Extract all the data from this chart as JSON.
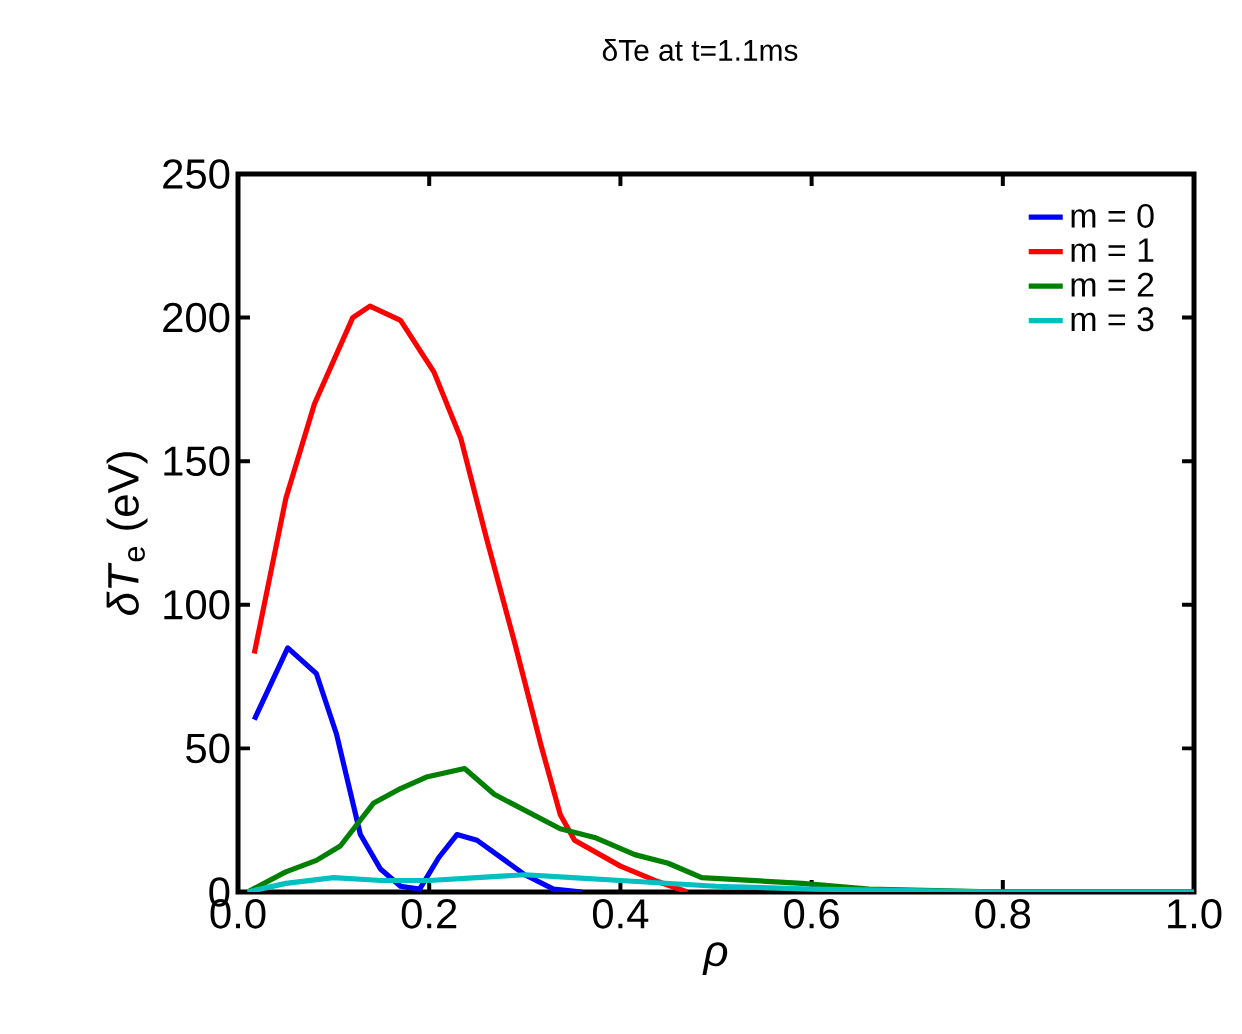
{
  "chart_data": {
    "type": "line",
    "title": "δTe at t=1.1ms",
    "xlabel": "ρ",
    "ylabel": "*δT*$_{e}$ (eV)",
    "xlim": [
      0,
      1
    ],
    "xticks": [
      {
        "value": 0,
        "label": "0.0"
      },
      0.2,
      0.4,
      0.6,
      0.8,
      {
        "value": 1,
        "label": "1.0"
      }
    ],
    "ylim": [
      0,
      250
    ],
    "yticks": [
      0,
      50,
      100,
      150,
      200,
      250
    ],
    "legend": "top right",
    "grid": false,
    "marker": "none",
    "line_style": "solid",
    "series": [
      {
        "name": "m = 0",
        "color": "#0000ff",
        "x": [
          0.017,
          0.052,
          0.082,
          0.103,
          0.128,
          0.149,
          0.17,
          0.19,
          0.21,
          0.229,
          0.25,
          0.275,
          0.3,
          0.33,
          0.36
        ],
        "values": [
          60,
          85,
          76,
          55,
          20,
          8,
          2,
          1,
          12,
          20,
          18,
          12,
          6,
          1,
          0
        ]
      },
      {
        "name": "m = 1",
        "color": "#ff0000",
        "x": [
          0.017,
          0.05,
          0.08,
          0.12,
          0.138,
          0.17,
          0.205,
          0.233,
          0.26,
          0.29,
          0.317,
          0.337,
          0.352,
          0.4,
          0.436,
          0.47
        ],
        "values": [
          83,
          137,
          170,
          200,
          204,
          199,
          181,
          158,
          123,
          86,
          51,
          27,
          18,
          9,
          4,
          0
        ]
      },
      {
        "name": "m = 2",
        "color": "#008000",
        "x": [
          0.01,
          0.05,
          0.082,
          0.107,
          0.142,
          0.17,
          0.197,
          0.237,
          0.268,
          0.337,
          0.373,
          0.415,
          0.45,
          0.485,
          0.59,
          0.66,
          0.8,
          1.0
        ],
        "values": [
          0,
          7,
          11,
          16,
          31,
          36,
          40,
          43,
          34,
          22,
          19,
          13,
          10,
          5,
          3,
          1,
          0,
          0
        ]
      },
      {
        "name": "m = 3",
        "color": "#00c0c0",
        "x": [
          0.01,
          0.05,
          0.1,
          0.15,
          0.2,
          0.25,
          0.3,
          0.35,
          0.4,
          0.5,
          0.6,
          0.8,
          1.0
        ],
        "values": [
          0,
          3,
          5,
          4,
          4,
          5,
          6,
          5,
          4,
          2,
          1,
          0,
          0
        ]
      }
    ]
  }
}
